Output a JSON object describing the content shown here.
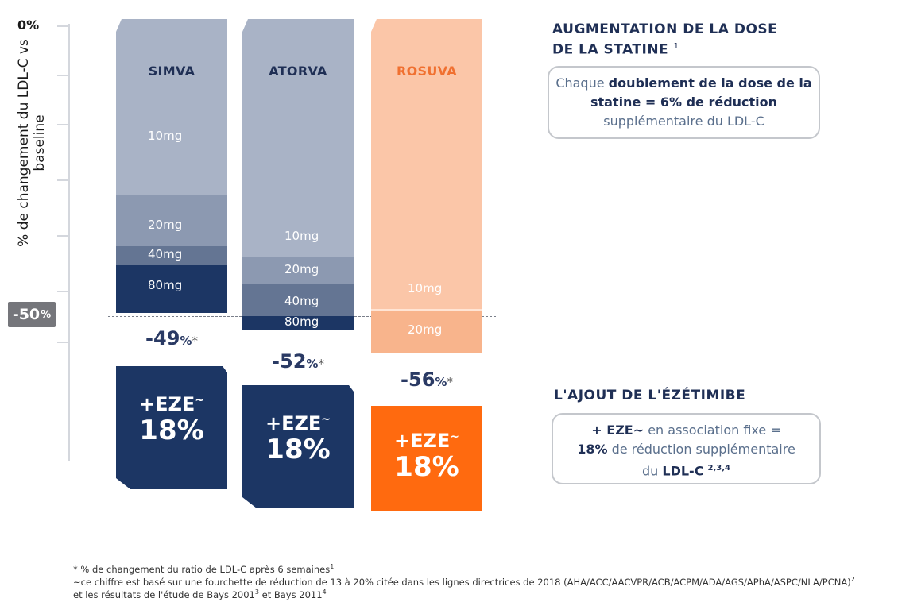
{
  "chart_data": {
    "type": "bar",
    "ylabel": "% de changement du LDL-C vs baseline",
    "y_ticks": [
      "0%",
      "-50%"
    ],
    "reference_line": -50,
    "categories": [
      "SIMVA",
      "ATORVA",
      "ROSUVA"
    ],
    "series": [
      {
        "name": "SIMVA",
        "doses": [
          "10mg",
          "20mg",
          "40mg",
          "80mg"
        ],
        "total_reduction": "-49",
        "eze_label": "+EZE",
        "eze_value": "18%"
      },
      {
        "name": "ATORVA",
        "doses": [
          "10mg",
          "20mg",
          "40mg",
          "80mg"
        ],
        "total_reduction": "-52",
        "eze_label": "+EZE",
        "eze_value": "18%"
      },
      {
        "name": "ROSUVA",
        "doses": [
          "10mg",
          "20mg"
        ],
        "total_reduction": "-56",
        "eze_label": "+EZE",
        "eze_value": "18%"
      }
    ],
    "pct_suffix": "%",
    "star": "*",
    "tilde": "~"
  },
  "right": {
    "heading1_line1": "AUGMENTATION DE LA DOSE",
    "heading1_line2": "DE LA STATINE",
    "heading1_sup": "1",
    "box1_pre": "Chaque ",
    "box1_bold1": "doublement de la dose de la",
    "box1_bold2": "statine = 6% de réduction",
    "box1_line3": "supplémentaire du LDL-C",
    "heading2": "L'AJOUT DE L'ÉZÉTIMIBE",
    "box2_bold1": "+ EZE~",
    "box2_text1": " en association fixe =",
    "box2_bold2": "18%",
    "box2_text2": " de réduction supplémentaire",
    "box2_text3": "du ",
    "box2_bold3": "LDL-C",
    "box2_sup": "2,3,4"
  },
  "footnotes": {
    "line1": "* % de changement du ratio de LDL-C après 6 semaines",
    "line1_sup": "1",
    "line2": "~ce chiffre est basé sur une fourchette de réduction de 13 à 20% citée dans les lignes directrices de 2018 (AHA/ACC/AACVPR/ACB/ACPM/ADA/AGS/APhA/ASPC/NLA/PCNA)",
    "line2_sup": "2",
    "line3_a": "et les résultats de l'étude de Bays 2001",
    "line3_sup1": "3",
    "line3_b": " et Bays 2011",
    "line3_sup2": "4"
  },
  "colors": {
    "light": "#a9b3c6",
    "mid": "#8c99b1",
    "midDark": "#647593",
    "dark": "#1c3664",
    "rosuvaLight": "#fbc6a8",
    "rosuvaMid": "#f8b48c",
    "rosuvaName": "#f07030",
    "eze": "#1c3664",
    "ezeRosuva": "#ff6a0f"
  }
}
